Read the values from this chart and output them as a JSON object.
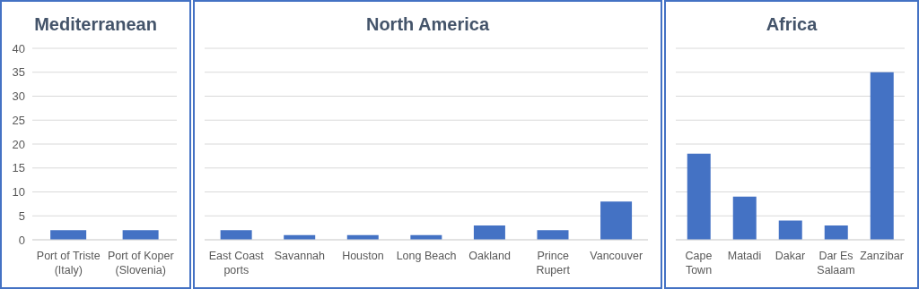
{
  "chart_data": [
    {
      "type": "bar",
      "title": "Mediterranean",
      "categories": [
        "Port of Triste (Italy)",
        "Port of Koper (Slovenia)"
      ],
      "values": [
        2,
        2
      ],
      "color": "#4472c4",
      "ylim": [
        0,
        40
      ],
      "yticks": [
        0,
        5,
        10,
        15,
        20,
        25,
        30,
        35,
        40
      ],
      "grid": "y"
    },
    {
      "type": "bar",
      "title": "North America",
      "categories": [
        "East Coast ports",
        "Savannah",
        "Houston",
        "Long Beach",
        "Oakland",
        "Prince Rupert",
        "Vancouver"
      ],
      "values": [
        2,
        1,
        1,
        1,
        3,
        2,
        8
      ],
      "color": "#4472c4",
      "ylim": [
        0,
        40
      ],
      "yticks": [
        0,
        5,
        10,
        15,
        20,
        25,
        30,
        35,
        40
      ],
      "grid": "y",
      "tick_labels": "x"
    },
    {
      "type": "bar",
      "title": "Africa",
      "categories": [
        "Cape Town",
        "Matadi",
        "Dakar",
        "Dar Es Salaam",
        "Zanzibar"
      ],
      "values": [
        18,
        9,
        4,
        3,
        35
      ],
      "color": "#4472c4",
      "ylim": [
        0,
        40
      ],
      "yticks": [
        0,
        5,
        10,
        15,
        20,
        25,
        30,
        35,
        40
      ],
      "grid": "y",
      "tick_labels": "x"
    }
  ]
}
